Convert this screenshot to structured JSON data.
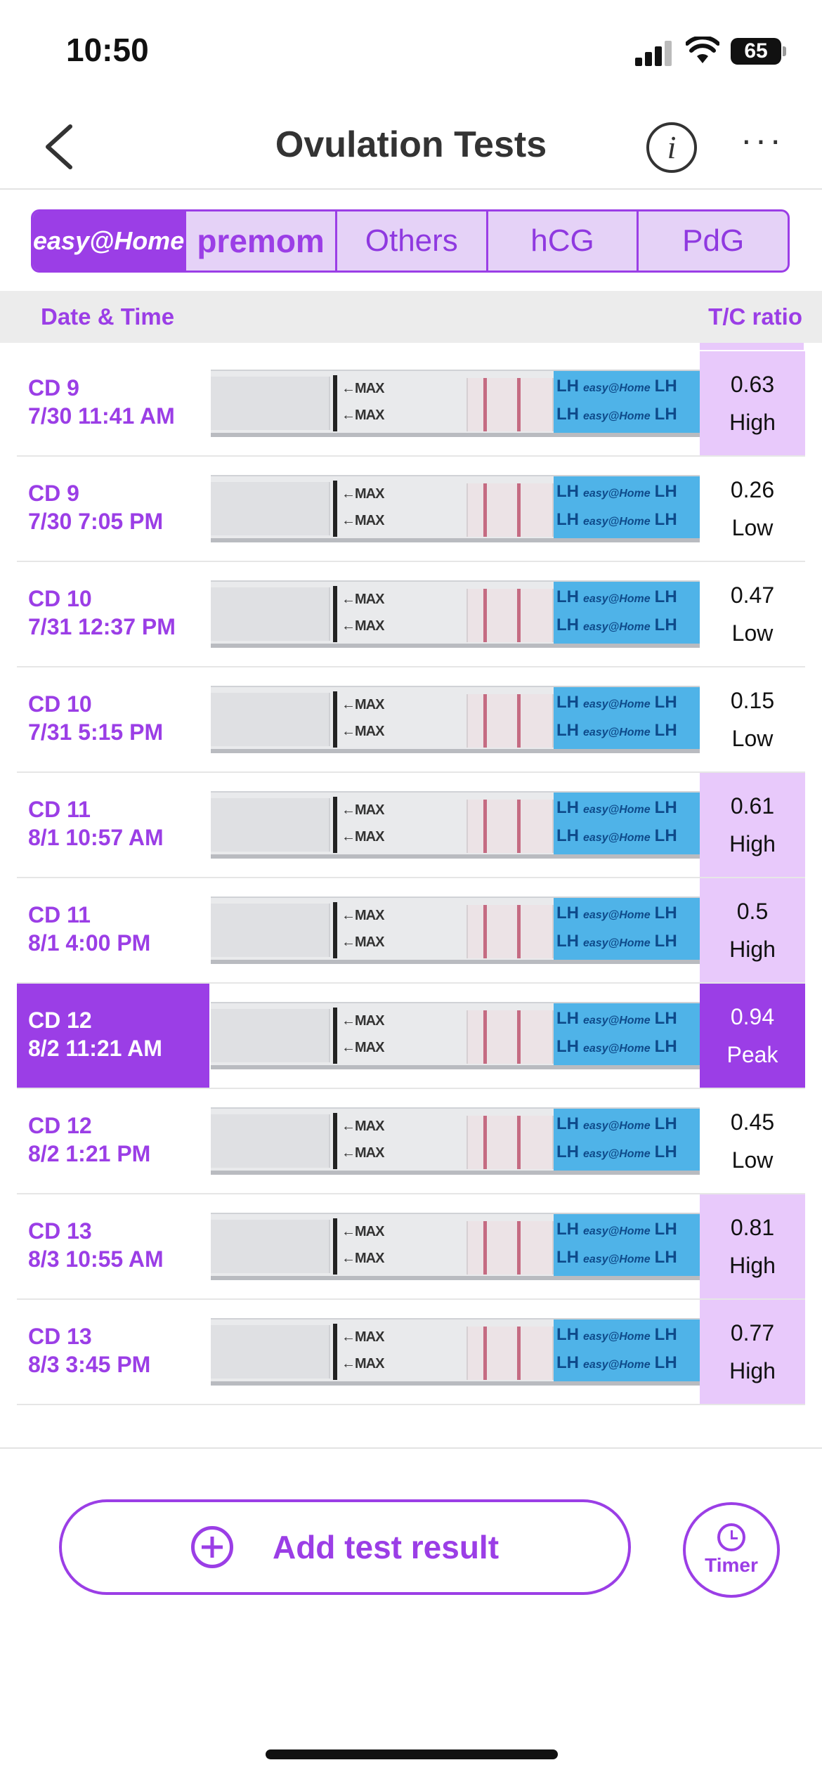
{
  "status_bar": {
    "time": "10:50",
    "battery": "65"
  },
  "header": {
    "title": "Ovulation Tests",
    "back_icon": "chevron-left-icon",
    "info_icon": "info-icon",
    "more_icon": "more-horizontal-icon"
  },
  "brand_tabs": [
    {
      "label": "easy@Home",
      "selected": true
    },
    {
      "label": "premom",
      "selected": false
    },
    {
      "label": "Others",
      "selected": false
    },
    {
      "label": "hCG",
      "selected": false
    },
    {
      "label": "PdG",
      "selected": false
    }
  ],
  "columns": {
    "date": "Date & Time",
    "ratio": "T/C ratio"
  },
  "strip_labels": {
    "max": "←MAX",
    "lh": "LH",
    "brand": "easy@Home"
  },
  "rows": [
    {
      "cd": "CD 9",
      "datetime": "7/30 11:41 AM",
      "ratio": "0.63",
      "level": "High"
    },
    {
      "cd": "CD 9",
      "datetime": "7/30 7:05 PM",
      "ratio": "0.26",
      "level": "Low"
    },
    {
      "cd": "CD 10",
      "datetime": "7/31 12:37 PM",
      "ratio": "0.47",
      "level": "Low"
    },
    {
      "cd": "CD 10",
      "datetime": "7/31 5:15 PM",
      "ratio": "0.15",
      "level": "Low"
    },
    {
      "cd": "CD 11",
      "datetime": "8/1 10:57 AM",
      "ratio": "0.61",
      "level": "High"
    },
    {
      "cd": "CD 11",
      "datetime": "8/1 4:00 PM",
      "ratio": "0.5",
      "level": "High"
    },
    {
      "cd": "CD 12",
      "datetime": "8/2 11:21 AM",
      "ratio": "0.94",
      "level": "Peak"
    },
    {
      "cd": "CD 12",
      "datetime": "8/2 1:21 PM",
      "ratio": "0.45",
      "level": "Low"
    },
    {
      "cd": "CD 13",
      "datetime": "8/3 10:55 AM",
      "ratio": "0.81",
      "level": "High"
    },
    {
      "cd": "CD 13",
      "datetime": "8/3 3:45 PM",
      "ratio": "0.77",
      "level": "High"
    }
  ],
  "actions": {
    "add_label": "Add test result",
    "timer_label": "Timer"
  },
  "colors": {
    "accent": "#9b3ee6",
    "high_bg": "#e8c9fb",
    "strip_wrapper": "#4fb3e8",
    "test_line": "#c56b82"
  }
}
